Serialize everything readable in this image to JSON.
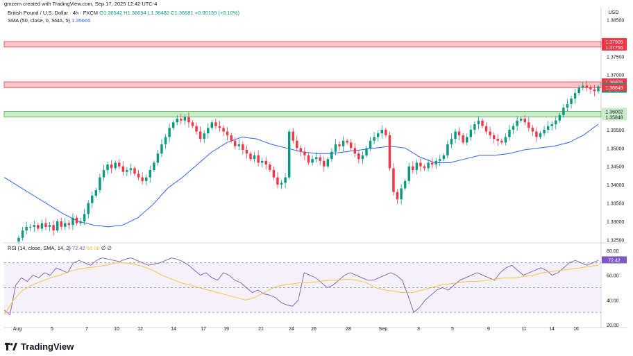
{
  "header": {
    "created_by": "gmzern created with TradingView.com, Sep 17, 2025 12:42 UTC-4"
  },
  "legend": {
    "symbol": "British Pound / U.S. Dollar · 4h · FXCM",
    "ohlc": "O1.36542 H1.36694 L1.36482 C1.36681 +0.00139 (+0.10%)",
    "sma_label": "SMA (50, close, 0, SMA, 5)",
    "sma_value": "1.35665",
    "rsi_label": "RSI (14, close, SMA, 14, 2)",
    "rsi_value": "72.42",
    "rsi_ma_value": "68.06",
    "rsi_extra": "∅ ∅"
  },
  "currency": "USD",
  "brand": "TradingView",
  "colors": {
    "up": "#089981",
    "down": "#f23645",
    "sma": "#2962ff",
    "rsi": "#7e57c2",
    "rsi_ma": "#f5c24a",
    "resistance_zone": "#f7c8c8",
    "support_zone": "#c9ecc9"
  },
  "chart_data": [
    {
      "type": "candlestick",
      "title": "British Pound / U.S. Dollar · 4h · FXCM",
      "ylim": [
        1.3245,
        1.3885
      ],
      "price_ticks": [
        "1.38500",
        "1.37500",
        "1.37000",
        "1.35500",
        "1.35000",
        "1.34500",
        "1.34000",
        "1.33500",
        "1.33000",
        "1.32500"
      ],
      "price_ticks_values": [
        1.385,
        1.375,
        1.37,
        1.355,
        1.35,
        1.345,
        1.34,
        1.335,
        1.33,
        1.325
      ],
      "x_ticks": [
        "Aug",
        "5",
        "7",
        "10",
        "12",
        "14",
        "17",
        "19",
        "21",
        "24",
        "26",
        "28",
        "Sep",
        "3",
        "5",
        "9",
        "11",
        "14",
        "16"
      ],
      "price_labels": [
        {
          "text": "1.37905",
          "value": 1.37905,
          "kind": "zone"
        },
        {
          "text": "1.37755",
          "value": 1.37755,
          "kind": "zone"
        },
        {
          "text": "1.36805",
          "value": 1.36805,
          "kind": "zone"
        },
        {
          "text": "1.36681",
          "value": 1.36681,
          "kind": "last"
        },
        {
          "text": "17:26",
          "value": 1.36605,
          "kind": "countdown"
        },
        {
          "text": "1.36649",
          "value": 1.36649,
          "kind": "zone"
        },
        {
          "text": "1.36002",
          "value": 1.36002,
          "kind": "support"
        },
        {
          "text": "1.35848",
          "value": 1.35848,
          "kind": "support"
        }
      ],
      "zones": [
        {
          "name": "resistance-upper",
          "top": 1.37905,
          "bottom": 1.37755
        },
        {
          "name": "resistance-lower",
          "top": 1.36805,
          "bottom": 1.36649
        },
        {
          "name": "support",
          "top": 1.36002,
          "bottom": 1.35848
        }
      ],
      "closes": [
        1.3255,
        1.3275,
        1.3285,
        1.3285,
        1.329,
        1.328,
        1.3295,
        1.3285,
        1.329,
        1.3275,
        1.33,
        1.3285,
        1.3295,
        1.329,
        1.331,
        1.3295,
        1.33,
        1.332,
        1.335,
        1.337,
        1.3385,
        1.342,
        1.344,
        1.3455,
        1.3445,
        1.346,
        1.345,
        1.3435,
        1.344,
        1.3445,
        1.343,
        1.342,
        1.341,
        1.342,
        1.344,
        1.346,
        1.3485,
        1.351,
        1.353,
        1.3555,
        1.357,
        1.358,
        1.3575,
        1.3585,
        1.357,
        1.356,
        1.3545,
        1.3525,
        1.354,
        1.3555,
        1.357,
        1.356,
        1.3555,
        1.3545,
        1.3535,
        1.352,
        1.3505,
        1.351,
        1.3495,
        1.3485,
        1.347,
        1.348,
        1.346,
        1.3465,
        1.3455,
        1.344,
        1.342,
        1.34,
        1.3405,
        1.342,
        1.3545,
        1.352,
        1.35,
        1.349,
        1.348,
        1.346,
        1.347,
        1.3475,
        1.3465,
        1.345,
        1.347,
        1.349,
        1.351,
        1.3505,
        1.352,
        1.3515,
        1.35,
        1.3485,
        1.347,
        1.348,
        1.35,
        1.352,
        1.353,
        1.354,
        1.355,
        1.3535,
        1.3445,
        1.338,
        1.336,
        1.339,
        1.341,
        1.345,
        1.344,
        1.346,
        1.345,
        1.3445,
        1.346,
        1.3455,
        1.3465,
        1.347,
        1.348,
        1.351,
        1.3525,
        1.3545,
        1.3535,
        1.3515,
        1.353,
        1.355,
        1.3565,
        1.3575,
        1.356,
        1.3545,
        1.3535,
        1.3525,
        1.352,
        1.3515,
        1.353,
        1.355,
        1.356,
        1.3575,
        1.358,
        1.357,
        1.3555,
        1.3545,
        1.353,
        1.354,
        1.355,
        1.356,
        1.3565,
        1.3575,
        1.359,
        1.361,
        1.362,
        1.3635,
        1.365,
        1.3665,
        1.367,
        1.3665,
        1.366,
        1.3655,
        1.3668
      ],
      "sma": [
        1.342,
        1.3395,
        1.337,
        1.3345,
        1.332,
        1.33,
        1.329,
        1.3285,
        1.329,
        1.331,
        1.3345,
        1.339,
        1.342,
        1.3455,
        1.349,
        1.3515,
        1.353,
        1.3525,
        1.351,
        1.35,
        1.349,
        1.3485,
        1.3485,
        1.349,
        1.3495,
        1.35,
        1.3505,
        1.35,
        1.3475,
        1.346,
        1.346,
        1.347,
        1.348,
        1.348,
        1.3485,
        1.3495,
        1.35,
        1.3505,
        1.3515,
        1.3535,
        1.3565
      ],
      "series": [
        {
          "name": "SMA (50, close, 0, SMA, 5)",
          "last": 1.35665
        }
      ]
    },
    {
      "type": "line",
      "title": "RSI (14, close, SMA, 14, 2)",
      "ylim": [
        20,
        85
      ],
      "y_ticks": [
        "80.00",
        "60.00",
        "40.00",
        "20.00"
      ],
      "y_ticks_values": [
        80,
        60,
        40,
        20
      ],
      "bands": {
        "upper": 70,
        "middle": 50,
        "lower": 30
      },
      "series": [
        {
          "name": "RSI",
          "last": 72.42,
          "values": [
            32,
            28,
            52,
            58,
            55,
            60,
            58,
            62,
            60,
            66,
            64,
            62,
            70,
            72,
            70,
            68,
            72,
            74,
            73,
            72,
            71,
            73,
            74,
            72,
            70,
            68,
            69,
            70,
            72,
            74,
            73,
            71,
            68,
            64,
            60,
            62,
            58,
            56,
            62,
            60,
            56,
            54,
            50,
            46,
            48,
            45,
            44,
            42,
            38,
            36,
            35,
            40,
            62,
            60,
            58,
            54,
            50,
            52,
            56,
            60,
            62,
            60,
            58,
            56,
            56,
            58,
            60,
            62,
            60,
            56,
            44,
            30,
            34,
            40,
            44,
            48,
            50,
            48,
            52,
            56,
            58,
            60,
            62,
            60,
            58,
            56,
            62,
            66,
            68,
            64,
            60,
            62,
            64,
            66,
            64,
            60,
            62,
            66,
            70,
            72,
            70,
            68,
            70,
            72
          ]
        },
        {
          "name": "RSI MA",
          "last": 68.06,
          "values": [
            28,
            40,
            48,
            52,
            55,
            58,
            60,
            63,
            65,
            66,
            67,
            68,
            70,
            70,
            69,
            67,
            64,
            60,
            57,
            54,
            52,
            50,
            48,
            46,
            44,
            42,
            40,
            42,
            46,
            50,
            52,
            53,
            54,
            54,
            55,
            56,
            56,
            57,
            56,
            54,
            50,
            48,
            47,
            46,
            46,
            48,
            50,
            52,
            53,
            54,
            55,
            55,
            56,
            57,
            58,
            58,
            59,
            60,
            62,
            63,
            64,
            65,
            66,
            67,
            68
          ]
        }
      ]
    }
  ]
}
